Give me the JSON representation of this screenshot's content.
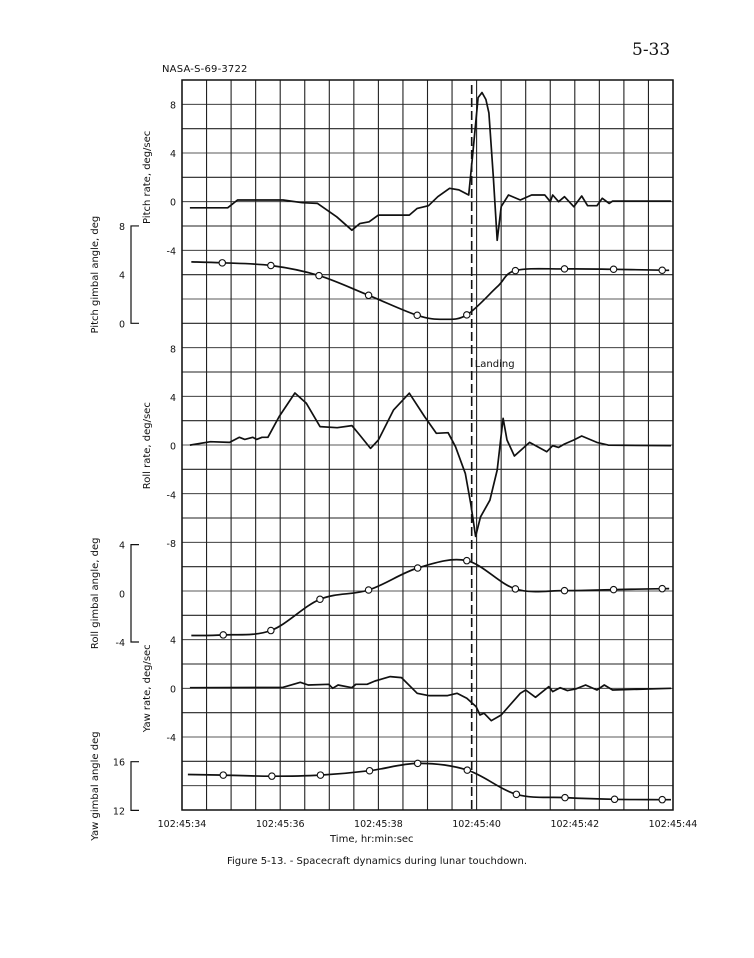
{
  "page_number": "5-33",
  "figure_id": "NASA-S-69-3722",
  "caption": "Figure 5-13. - Spacecraft dynamics during lunar touchdown.",
  "chart_data": {
    "type": "line",
    "title": "",
    "xlabel": "Time, hr:min:sec",
    "x_ticks": [
      "102:45:34",
      "102:45:36",
      "102:45:38",
      "102:45:40",
      "102:45:42",
      "102:45:44"
    ],
    "x_tick_values": [
      34,
      36,
      38,
      40,
      42,
      44
    ],
    "xlim": [
      34,
      44
    ],
    "grid": true,
    "colors": {
      "line": "#111111",
      "grid": "#222222",
      "marker_fill": "#ffffff"
    },
    "annotation": {
      "label": "Landing",
      "x": 39.9,
      "style": "dashed vertical line"
    },
    "panels": [
      {
        "ylabel": "Pitch rate, deg/sec",
        "yticks": [
          "8",
          "4",
          "0",
          "-4"
        ],
        "ytick_values": [
          8,
          4,
          0,
          -4
        ],
        "markers": false,
        "points": [
          [
            34.16,
            -0.5
          ],
          [
            34.93,
            -0.5
          ],
          [
            35.13,
            0.14
          ],
          [
            36.06,
            0.14
          ],
          [
            36.45,
            -0.08
          ],
          [
            36.76,
            -0.14
          ],
          [
            37.15,
            -1.24
          ],
          [
            37.46,
            -2.34
          ],
          [
            37.62,
            -1.8
          ],
          [
            37.81,
            -1.65
          ],
          [
            38.0,
            -1.1
          ],
          [
            38.63,
            -1.1
          ],
          [
            38.79,
            -0.55
          ],
          [
            39.02,
            -0.33
          ],
          [
            39.21,
            0.41
          ],
          [
            39.45,
            1.1
          ],
          [
            39.64,
            0.97
          ],
          [
            39.84,
            0.55
          ],
          [
            39.91,
            3.45
          ],
          [
            40.03,
            8.55
          ],
          [
            40.11,
            8.97
          ],
          [
            40.19,
            8.4
          ],
          [
            40.25,
            7.3
          ],
          [
            40.34,
            2.07
          ],
          [
            40.42,
            -3.17
          ],
          [
            40.5,
            -0.4
          ],
          [
            40.65,
            0.55
          ],
          [
            40.89,
            0.14
          ],
          [
            41.12,
            0.55
          ],
          [
            41.39,
            0.55
          ],
          [
            41.5,
            0
          ],
          [
            41.55,
            0.55
          ],
          [
            41.67,
            0
          ],
          [
            41.79,
            0.41
          ],
          [
            41.98,
            -0.41
          ],
          [
            42.14,
            0.47
          ],
          [
            42.26,
            -0.33
          ],
          [
            42.45,
            -0.33
          ],
          [
            42.56,
            0.28
          ],
          [
            42.7,
            -0.14
          ],
          [
            42.77,
            0.05
          ],
          [
            43.96,
            0.05
          ]
        ]
      },
      {
        "ylabel": "Pitch gimbal angle, deg",
        "yticks": [
          "8",
          "4",
          "0"
        ],
        "ytick_values": [
          8,
          4,
          0
        ],
        "markers": true,
        "points": [
          [
            34.19,
            5.05
          ],
          [
            34.82,
            4.97
          ],
          [
            35.81,
            4.75
          ],
          [
            36.79,
            3.92
          ],
          [
            37.8,
            2.3
          ],
          [
            38.79,
            0.66
          ],
          [
            39.33,
            0.33
          ],
          [
            39.8,
            0.69
          ],
          [
            40.42,
            3.0
          ],
          [
            40.79,
            4.33
          ],
          [
            41.79,
            4.47
          ],
          [
            42.79,
            4.44
          ],
          [
            43.78,
            4.36
          ],
          [
            43.92,
            4.36
          ]
        ],
        "marker_points": [
          [
            34.82,
            4.97
          ],
          [
            35.81,
            4.75
          ],
          [
            36.79,
            3.92
          ],
          [
            37.8,
            2.3
          ],
          [
            38.79,
            0.66
          ],
          [
            39.8,
            0.69
          ],
          [
            40.79,
            4.33
          ],
          [
            41.79,
            4.47
          ],
          [
            42.79,
            4.44
          ],
          [
            43.78,
            4.36
          ]
        ]
      },
      {
        "ylabel": "Roll rate, deg/sec",
        "yticks": [
          "8",
          "4",
          "0",
          "-4",
          "-8"
        ],
        "ytick_values": [
          8,
          4,
          0,
          -4,
          -8
        ],
        "markers": false,
        "points": [
          [
            34.16,
            0.05
          ],
          [
            34.58,
            0.33
          ],
          [
            34.97,
            0.27
          ],
          [
            35.17,
            0.69
          ],
          [
            35.28,
            0.52
          ],
          [
            35.44,
            0.69
          ],
          [
            35.52,
            0.52
          ],
          [
            35.63,
            0.69
          ],
          [
            35.75,
            0.69
          ],
          [
            35.98,
            2.4
          ],
          [
            36.3,
            4.33
          ],
          [
            36.53,
            3.5
          ],
          [
            36.81,
            1.57
          ],
          [
            37.16,
            1.48
          ],
          [
            37.46,
            1.65
          ],
          [
            37.62,
            0.88
          ],
          [
            37.84,
            -0.22
          ],
          [
            38.0,
            0.47
          ],
          [
            38.31,
            2.94
          ],
          [
            38.63,
            4.31
          ],
          [
            38.94,
            2.39
          ],
          [
            39.18,
            1.02
          ],
          [
            39.42,
            1.07
          ],
          [
            39.57,
            -0.08
          ],
          [
            39.77,
            -2.28
          ],
          [
            39.88,
            -4.75
          ],
          [
            39.98,
            -7.45
          ],
          [
            40.08,
            -5.85
          ],
          [
            40.27,
            -4.48
          ],
          [
            40.42,
            -2.0
          ],
          [
            40.54,
            2.25
          ],
          [
            40.62,
            0.47
          ],
          [
            40.77,
            -0.85
          ],
          [
            41.08,
            0.27
          ],
          [
            41.43,
            -0.49
          ],
          [
            41.55,
            0
          ],
          [
            41.67,
            -0.14
          ],
          [
            41.79,
            0.14
          ],
          [
            41.98,
            0.47
          ],
          [
            42.14,
            0.8
          ],
          [
            42.45,
            0.27
          ],
          [
            42.68,
            0.05
          ],
          [
            43.96,
            0
          ]
        ]
      },
      {
        "ylabel": "Roll gimbal angle, deg",
        "yticks": [
          "4",
          "0",
          "-4"
        ],
        "ytick_values": [
          4,
          0,
          -4
        ],
        "markers": true,
        "points": [
          [
            34.19,
            -3.47
          ],
          [
            34.84,
            -3.42
          ],
          [
            35.81,
            -3.06
          ],
          [
            36.81,
            -0.49
          ],
          [
            37.8,
            0.27
          ],
          [
            38.8,
            2.08
          ],
          [
            39.8,
            2.68
          ],
          [
            40.79,
            0.36
          ],
          [
            41.79,
            0.22
          ],
          [
            42.79,
            0.3
          ],
          [
            43.78,
            0.38
          ],
          [
            43.92,
            0.38
          ]
        ],
        "marker_points": [
          [
            34.84,
            -3.42
          ],
          [
            35.81,
            -3.06
          ],
          [
            36.81,
            -0.49
          ],
          [
            37.8,
            0.27
          ],
          [
            38.8,
            2.08
          ],
          [
            39.8,
            2.68
          ],
          [
            40.79,
            0.36
          ],
          [
            41.79,
            0.22
          ],
          [
            42.79,
            0.3
          ],
          [
            43.78,
            0.38
          ]
        ]
      },
      {
        "ylabel": "Yaw rate, deg/sec",
        "yticks": [
          "4",
          "0",
          "-4"
        ],
        "ytick_values": [
          4,
          0,
          -4
        ],
        "markers": false,
        "points": [
          [
            34.16,
            0.05
          ],
          [
            36.06,
            0.08
          ],
          [
            36.41,
            0.49
          ],
          [
            36.57,
            0.27
          ],
          [
            36.99,
            0.33
          ],
          [
            37.07,
            0
          ],
          [
            37.18,
            0.27
          ],
          [
            37.46,
            0.05
          ],
          [
            37.54,
            0.33
          ],
          [
            37.77,
            0.33
          ],
          [
            37.93,
            0.6
          ],
          [
            38.24,
            0.96
          ],
          [
            38.47,
            0.88
          ],
          [
            38.79,
            -0.41
          ],
          [
            39.02,
            -0.6
          ],
          [
            39.41,
            -0.6
          ],
          [
            39.6,
            -0.41
          ],
          [
            39.8,
            -0.82
          ],
          [
            39.99,
            -1.5
          ],
          [
            40.07,
            -2.19
          ],
          [
            40.15,
            -2.05
          ],
          [
            40.3,
            -2.66
          ],
          [
            40.5,
            -2.19
          ],
          [
            40.89,
            -0.41
          ],
          [
            41.0,
            -0.14
          ],
          [
            41.2,
            -0.74
          ],
          [
            41.47,
            0.14
          ],
          [
            41.55,
            -0.27
          ],
          [
            41.7,
            0.05
          ],
          [
            41.85,
            -0.19
          ],
          [
            42.02,
            -0.05
          ],
          [
            42.22,
            0.27
          ],
          [
            42.45,
            -0.14
          ],
          [
            42.6,
            0.27
          ],
          [
            42.77,
            -0.14
          ],
          [
            43.96,
            0
          ]
        ]
      },
      {
        "ylabel": "Yaw gimbal angle deg",
        "yticks": [
          "16",
          "12"
        ],
        "ytick_values": [
          16,
          12
        ],
        "markers": true,
        "points": [
          [
            34.12,
            14.95
          ],
          [
            34.84,
            14.9
          ],
          [
            35.83,
            14.81
          ],
          [
            36.82,
            14.9
          ],
          [
            37.82,
            15.26
          ],
          [
            38.8,
            15.86
          ],
          [
            39.81,
            15.31
          ],
          [
            40.81,
            13.32
          ],
          [
            41.8,
            13.05
          ],
          [
            42.81,
            12.91
          ],
          [
            43.78,
            12.88
          ],
          [
            43.96,
            12.88
          ]
        ],
        "marker_points": [
          [
            34.84,
            14.9
          ],
          [
            35.83,
            14.81
          ],
          [
            36.82,
            14.9
          ],
          [
            37.82,
            15.26
          ],
          [
            38.8,
            15.86
          ],
          [
            39.81,
            15.31
          ],
          [
            40.81,
            13.32
          ],
          [
            41.8,
            13.05
          ],
          [
            42.81,
            12.91
          ],
          [
            43.78,
            12.88
          ]
        ]
      }
    ]
  }
}
